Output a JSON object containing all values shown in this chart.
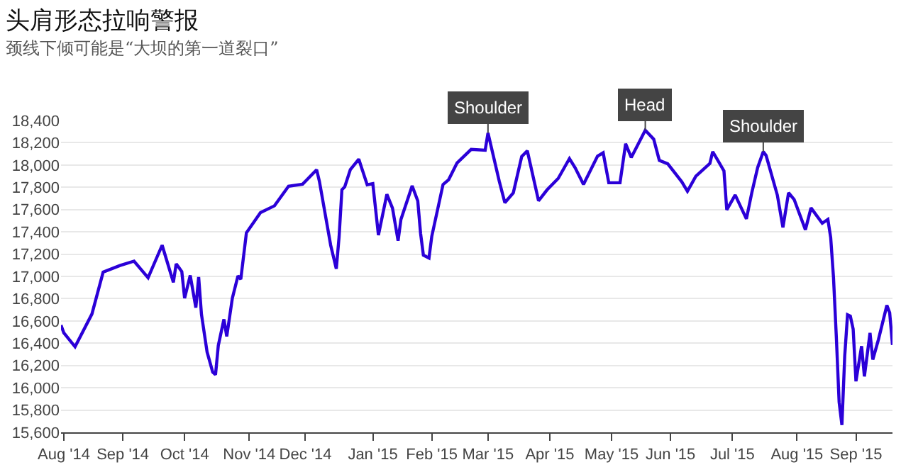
{
  "chart_data": {
    "type": "line",
    "title": "头肩形态拉响警报",
    "subtitle": "颈线下倾可能是“大坝的第一道裂口”",
    "x": [
      "2014-07-31",
      "2014-08-01",
      "2014-08-07",
      "2014-08-15",
      "2014-08-21",
      "2014-08-29",
      "2014-09-05",
      "2014-09-12",
      "2014-09-19",
      "2014-09-25",
      "2014-09-26",
      "2014-09-30",
      "2014-10-01",
      "2014-10-03",
      "2014-10-07",
      "2014-10-08",
      "2014-10-09",
      "2014-10-13",
      "2014-10-15",
      "2014-10-16",
      "2014-10-17",
      "2014-10-21",
      "2014-10-22",
      "2014-10-24",
      "2014-10-28",
      "2014-10-29",
      "2014-10-31",
      "2014-11-07",
      "2014-11-14",
      "2014-11-21",
      "2014-11-28",
      "2014-12-05",
      "2014-12-08",
      "2014-12-12",
      "2014-12-16",
      "2014-12-17",
      "2014-12-18",
      "2014-12-19",
      "2014-12-23",
      "2014-12-26",
      "2014-12-31",
      "2015-01-02",
      "2015-01-06",
      "2015-01-09",
      "2015-01-13",
      "2015-01-15",
      "2015-01-16",
      "2015-01-22",
      "2015-01-26",
      "2015-01-27",
      "2015-01-28",
      "2015-01-30",
      "2015-02-02",
      "2015-02-06",
      "2015-02-10",
      "2015-02-13",
      "2015-02-20",
      "2015-02-27",
      "2015-03-02",
      "2015-03-06",
      "2015-03-10",
      "2015-03-13",
      "2015-03-18",
      "2015-03-20",
      "2015-03-26",
      "2015-03-31",
      "2015-04-06",
      "2015-04-10",
      "2015-04-14",
      "2015-04-17",
      "2015-04-24",
      "2015-04-28",
      "2015-04-30",
      "2015-05-06",
      "2015-05-08",
      "2015-05-12",
      "2015-05-19",
      "2015-05-22",
      "2015-05-26",
      "2015-05-29",
      "2015-06-05",
      "2015-06-09",
      "2015-06-12",
      "2015-06-19",
      "2015-06-22",
      "2015-06-26",
      "2015-06-29",
      "2015-07-02",
      "2015-07-08",
      "2015-07-10",
      "2015-07-14",
      "2015-07-16",
      "2015-07-17",
      "2015-07-23",
      "2015-07-27",
      "2015-07-29",
      "2015-07-31",
      "2015-08-06",
      "2015-08-10",
      "2015-08-14",
      "2015-08-18",
      "2015-08-19",
      "2015-08-20",
      "2015-08-21",
      "2015-08-24",
      "2015-08-25",
      "2015-08-26",
      "2015-08-27",
      "2015-08-28",
      "2015-08-31",
      "2015-09-01",
      "2015-09-03",
      "2015-09-04",
      "2015-09-08",
      "2015-09-09",
      "2015-09-11",
      "2015-09-16",
      "2015-09-17",
      "2015-09-18"
    ],
    "series": [
      {
        "color": "#2b00d8",
        "values": [
          16563,
          16493,
          16368,
          16662,
          17039,
          17098,
          17137,
          16988,
          17280,
          16946,
          17113,
          17043,
          16804,
          17009,
          16719,
          16994,
          16659,
          16321,
          16141,
          16117,
          16380,
          16615,
          16461,
          16805,
          17005,
          16974,
          17391,
          17573,
          17634,
          17810,
          17828,
          17958,
          17852,
          17280,
          17068,
          17356,
          17778,
          17804,
          17959,
          18053,
          17823,
          17833,
          17371,
          17737,
          17613,
          17320,
          17511,
          17813,
          17678,
          17387,
          17191,
          17165,
          17361,
          17825,
          17868,
          18019,
          18140,
          18133,
          18288,
          17856,
          17662,
          17749,
          18076,
          18128,
          17679,
          17776,
          17880,
          18058,
          17977,
          17826,
          18080,
          18110,
          17841,
          17841,
          18191,
          18068,
          18312,
          18232,
          18042,
          18011,
          17849,
          17765,
          17899,
          18015,
          18120,
          17947,
          17597,
          17731,
          17516,
          17761,
          17977,
          18120,
          18086,
          17731,
          17440,
          17751,
          17690,
          17419,
          17615,
          17477,
          17512,
          17349,
          16990,
          16460,
          15871,
          15666,
          16285,
          16655,
          16643,
          16528,
          16058,
          16374,
          16102,
          16492,
          16253,
          16433,
          16740,
          16674,
          16384
        ]
      }
    ],
    "xlim": [
      "2014-07-31",
      "2015-09-18"
    ],
    "xticks": [
      {
        "value": "2014-08-01",
        "label": "Aug '14"
      },
      {
        "value": "2014-09-01",
        "label": "Sep '14"
      },
      {
        "value": "2014-10-01",
        "label": "Oct '14"
      },
      {
        "value": "2014-11-03",
        "label": "Nov '14"
      },
      {
        "value": "2014-12-01",
        "label": "Dec '14"
      },
      {
        "value": "2015-01-02",
        "label": "Jan '15"
      },
      {
        "value": "2015-02-02",
        "label": "Feb '15"
      },
      {
        "value": "2015-03-02",
        "label": "Mar '15"
      },
      {
        "value": "2015-04-01",
        "label": "Apr '15"
      },
      {
        "value": "2015-05-01",
        "label": "May '15"
      },
      {
        "value": "2015-06-01",
        "label": "Jun '15"
      },
      {
        "value": "2015-07-01",
        "label": "Jul '15"
      },
      {
        "value": "2015-08-03",
        "label": "Aug '15"
      },
      {
        "value": "2015-09-01",
        "label": "Sep '15"
      }
    ],
    "ylim": [
      15600,
      18400
    ],
    "yticks": [
      {
        "value": 15600,
        "label": "15,600"
      },
      {
        "value": 15800,
        "label": "15,800"
      },
      {
        "value": 16000,
        "label": "16,000"
      },
      {
        "value": 16200,
        "label": "16,200"
      },
      {
        "value": 16400,
        "label": "16,400"
      },
      {
        "value": 16600,
        "label": "16,600"
      },
      {
        "value": 16800,
        "label": "16,800"
      },
      {
        "value": 17000,
        "label": "17,000"
      },
      {
        "value": 17200,
        "label": "17,200"
      },
      {
        "value": 17400,
        "label": "17,400"
      },
      {
        "value": 17600,
        "label": "17,600"
      },
      {
        "value": 17800,
        "label": "17,800"
      },
      {
        "value": 18000,
        "label": "18,000"
      },
      {
        "value": 18200,
        "label": "18,200"
      },
      {
        "value": 18400,
        "label": "18,400"
      }
    ],
    "annotations": [
      {
        "text": "Shoulder",
        "x": "2015-03-02",
        "y": 18288
      },
      {
        "text": "Head",
        "x": "2015-05-19",
        "y": 18312
      },
      {
        "text": "Shoulder",
        "x": "2015-07-16",
        "y": 18120
      }
    ],
    "grid": "y",
    "marker": "none",
    "line_style": "solid"
  }
}
